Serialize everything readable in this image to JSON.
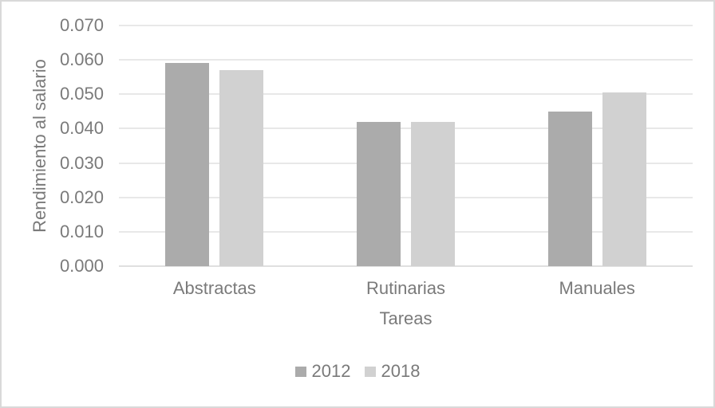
{
  "chart_data": {
    "type": "bar",
    "categories": [
      "Abstractas",
      "Rutinarias",
      "Manuales"
    ],
    "series": [
      {
        "name": "2012",
        "color": "#ababab",
        "values": [
          0.059,
          0.042,
          0.045
        ]
      },
      {
        "name": "2018",
        "color": "#d1d1d1",
        "values": [
          0.057,
          0.042,
          0.0505
        ]
      }
    ],
    "xlabel": "Tareas",
    "ylabel": "Rendimiento al salario",
    "ylim": [
      0,
      0.07
    ],
    "ytick_step": 0.01,
    "ytick_decimals": 3,
    "ytick_labels": [
      "0.000",
      "0.010",
      "0.020",
      "0.030",
      "0.040",
      "0.050",
      "0.060",
      "0.070"
    ],
    "grid": "horizontal",
    "legend_position": "bottom"
  },
  "colors": {
    "text": "#7a7a7a",
    "gridline": "#e8e8e8",
    "axis_line": "#e0e0e0",
    "frame_border": "#d9d9d9",
    "background": "#ffffff"
  }
}
